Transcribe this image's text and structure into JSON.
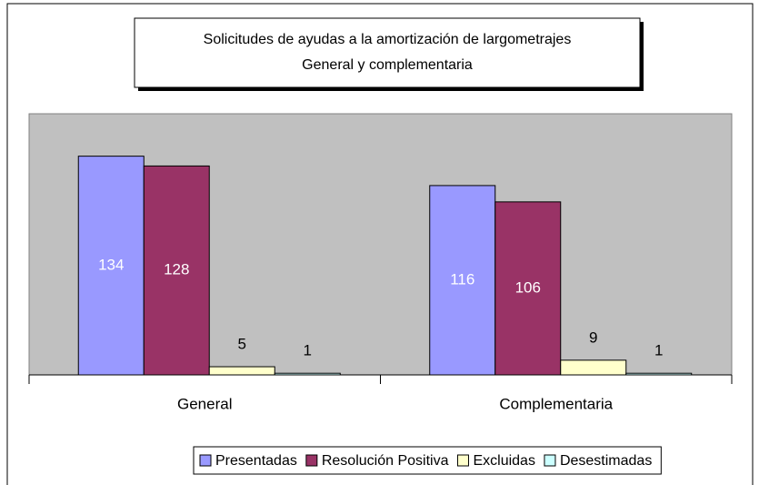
{
  "chart_data": {
    "type": "bar",
    "title": "Solicitudes de ayudas a la amortización de largometrajes",
    "subtitle": "General y complementaria",
    "categories": [
      "General",
      "Complementaria"
    ],
    "series": [
      {
        "name": "Presentadas",
        "color": "#9999ff",
        "values": [
          134,
          116
        ]
      },
      {
        "name": "Resolución Positiva",
        "color": "#993366",
        "values": [
          128,
          106
        ]
      },
      {
        "name": "Excluidas",
        "color": "#ffffcc",
        "values": [
          5,
          9
        ]
      },
      {
        "name": "Desestimadas",
        "color": "#ccffff",
        "values": [
          1,
          1
        ]
      }
    ],
    "ylim": [
      0,
      160
    ],
    "legend": "bottom"
  }
}
